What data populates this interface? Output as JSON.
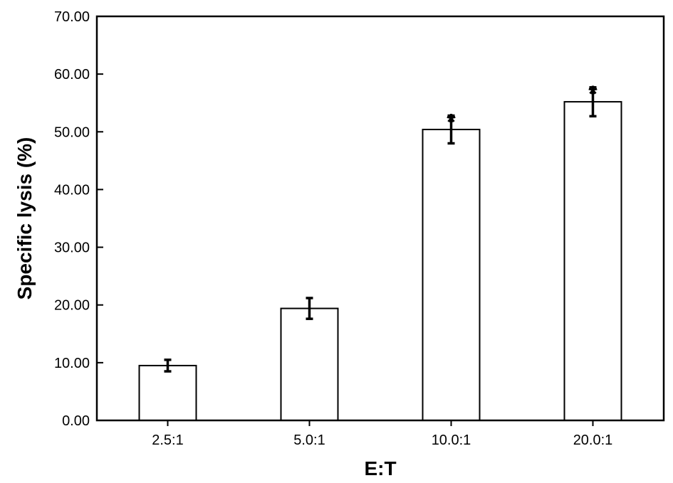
{
  "chart_data": {
    "type": "bar",
    "title": "",
    "xlabel": "E:T",
    "ylabel": "Specific lysis (%)",
    "ylim": [
      0,
      70
    ],
    "yticks": [
      "0.00",
      "10.00",
      "20.00",
      "30.00",
      "40.00",
      "50.00",
      "60.00",
      "70.00"
    ],
    "ytick_values": [
      0,
      10,
      20,
      30,
      40,
      50,
      60,
      70
    ],
    "categories": [
      "2.5:1",
      "5.0:1",
      "10.0:1",
      "20.0:1"
    ],
    "values": [
      9.5,
      19.4,
      50.4,
      55.2
    ],
    "error": [
      1.0,
      1.8,
      2.4,
      2.5
    ],
    "annotations": [
      "",
      "",
      "*",
      "*"
    ],
    "grid": false,
    "legend": "none",
    "bar_fill": "#ffffff",
    "bar_stroke": "#000000"
  }
}
